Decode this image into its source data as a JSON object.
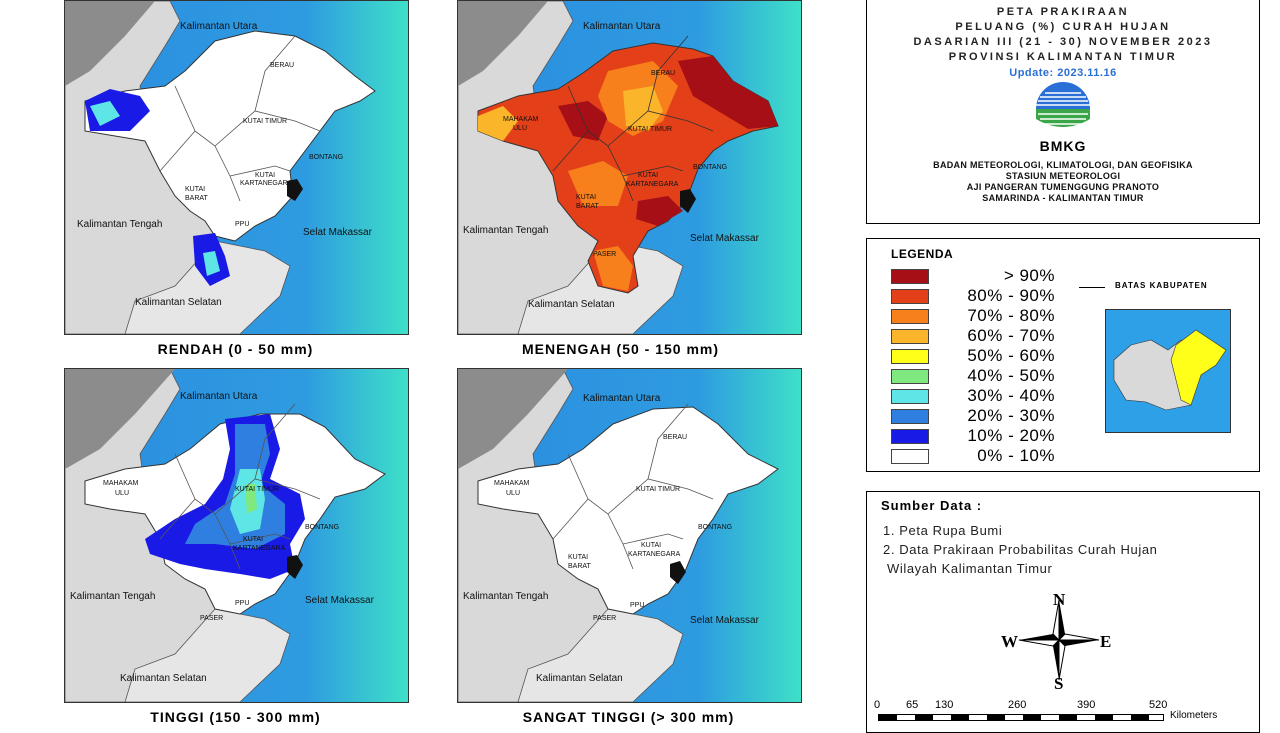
{
  "maps": [
    {
      "caption": "RENDAH (0 - 50 mm)"
    },
    {
      "caption": "MENENGAH (50 - 150 mm)"
    },
    {
      "caption": "TINGGI (150 - 300 mm)"
    },
    {
      "caption": "SANGAT TINGGI (> 300 mm)"
    }
  ],
  "place_labels": {
    "kaltara": "Kalimantan Utara",
    "kalteng": "Kalimantan Tengah",
    "kalsel": "Kalimantan Selatan",
    "selat": "Selat Makassar",
    "berau": "BERAU",
    "kutai_timur": "KUTAI TIMUR",
    "bontang": "BONTANG",
    "kutai": "KUTAI",
    "kartanegara": "KARTANEGARA",
    "kutai_barat_1": "KUTAI",
    "kutai_barat_2": "BARAT",
    "mahakam_1": "MAHAKAM",
    "mahakam_2": "ULU",
    "ppu": "PPU",
    "paser": "PASER"
  },
  "header": {
    "line1": "PETA PRAKIRAAN",
    "line2": "PELUANG (%) CURAH HUJAN",
    "line3": "DASARIAN III (21 - 30) NOVEMBER 2023",
    "line4": "PROVINSI KALIMANTAN TIMUR",
    "update": "Update: 2023.11.16",
    "logo_text": "BMKG",
    "agency1": "BADAN METEOROLOGI, KLIMATOLOGI, DAN GEOFISIKA",
    "agency2": "STASIUN METEOROLOGI",
    "agency3": "AJI PANGERAN TUMENGGUNG PRANOTO",
    "agency4": "SAMARINDA - KALIMANTAN TIMUR"
  },
  "legend": {
    "title": "LEGENDA",
    "boundary_label": "BATAS KABUPATEN",
    "items": [
      {
        "label": "> 90%",
        "color": "#a50f15"
      },
      {
        "label": "80% - 90%",
        "color": "#e3401a"
      },
      {
        "label": "70% - 80%",
        "color": "#f77f1c"
      },
      {
        "label": "60% - 70%",
        "color": "#fbb52a"
      },
      {
        "label": "50% - 60%",
        "color": "#ffff1a"
      },
      {
        "label": "40% - 50%",
        "color": "#7fe87f"
      },
      {
        "label": "30% - 40%",
        "color": "#5ee6e6"
      },
      {
        "label": "20% - 30%",
        "color": "#2f7fe0"
      },
      {
        "label": "10% - 20%",
        "color": "#1a1ae6"
      },
      {
        "label": "0% - 10%",
        "color": "#ffffff"
      }
    ]
  },
  "source": {
    "title": "Sumber Data :",
    "item1": "1. Peta Rupa Bumi",
    "item2a": "2. Data Prakiraan Probabilitas Curah Hujan",
    "item2b": "Wilayah Kalimantan Timur"
  },
  "compass": {
    "n": "N",
    "s": "S",
    "e": "E",
    "w": "W"
  },
  "scale": {
    "ticks": [
      "0",
      "65",
      "130",
      "260",
      "390",
      "520"
    ],
    "unit": "Kilometers"
  },
  "colors": {
    "ocean_deep": "#2b8de0",
    "ocean_shallow": "#3ee0c8",
    "land_other": "#d9d9d9",
    "land_dark": "#8c8c8c",
    "province": "#ffffff"
  }
}
